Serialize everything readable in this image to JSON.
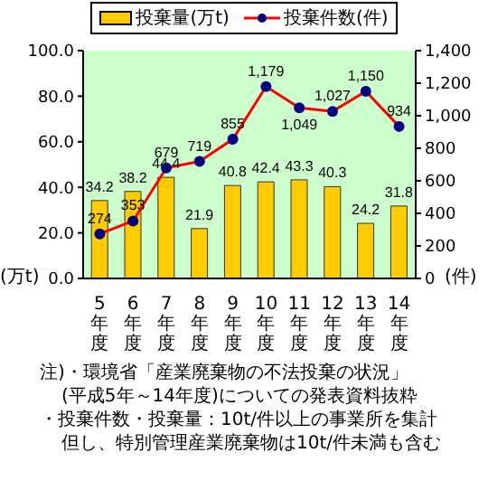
{
  "chart_data": {
    "type": "bar",
    "categories": [
      "5年度",
      "6年度",
      "7年度",
      "8年度",
      "9年度",
      "10年度",
      "11年度",
      "12年度",
      "13年度",
      "14年度"
    ],
    "series": [
      {
        "name": "投棄量(万t)",
        "color": "#ffcc00",
        "values": [
          34.2,
          38.2,
          44.4,
          21.9,
          40.8,
          42.4,
          43.3,
          40.3,
          24.2,
          31.8
        ]
      },
      {
        "name": "投棄件数(件)",
        "type": "line",
        "axis": "y2",
        "color": "#ff0000",
        "values": [
          274,
          353,
          679,
          719,
          855,
          1179,
          1049,
          1027,
          1150,
          934
        ],
        "value_labels": [
          "274",
          "353",
          "679",
          "719",
          "855",
          "1,179",
          "1,049",
          "1,027",
          "1,150",
          "934"
        ]
      }
    ],
    "ylabel": "(万t)",
    "y2label": "(件)",
    "ylim": [
      0,
      100
    ],
    "yticks": [
      {
        "value": 0,
        "label": "0.0"
      },
      {
        "value": 20,
        "label": "20.0"
      },
      {
        "value": 40,
        "label": "40.0"
      },
      {
        "value": 60,
        "label": "60.0"
      },
      {
        "value": 80,
        "label": "80.0"
      },
      {
        "value": 100,
        "label": "100.0"
      }
    ],
    "y2lim": [
      0,
      1400
    ],
    "y2ticks": [
      0,
      200,
      400,
      600,
      800,
      {
        "value": 1000,
        "label": "1,000"
      },
      {
        "value": 1200,
        "label": "1,200"
      },
      {
        "value": 1400,
        "label": "1,400"
      }
    ],
    "data_labels": true,
    "legend": "top",
    "grid": false,
    "marker": "circle",
    "annotations": [
      "注)・環境省「産業廃棄物の不法投棄の状況」",
      "(平成5年～14年度)についての発表資料抜粋",
      "・投棄件数・投棄量：10t/件以上の事業所を集計",
      "但し、特別管理産業廃棄物は10t/件未満も含む"
    ]
  }
}
